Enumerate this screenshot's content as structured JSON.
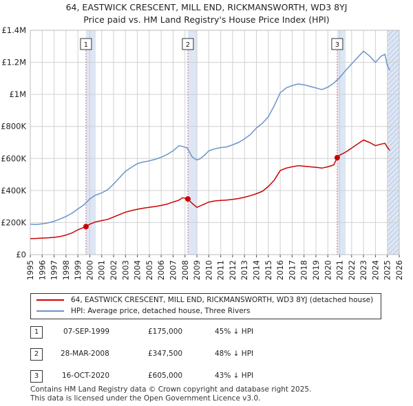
{
  "colors": {
    "price": "#cc0000",
    "hpi": "#6a93c8",
    "shade": "#dde6f4",
    "grid": "#d0d0d0",
    "marker_line": "#e06666"
  },
  "chart_data": {
    "type": "line",
    "title": "64, EASTWICK CRESCENT, MILL END, RICKMANSWORTH, WD3 8YJ",
    "subtitle": "Price paid vs. HM Land Registry's House Price Index (HPI)",
    "xlabel": "",
    "ylabel": "",
    "xlim": [
      1995,
      2026
    ],
    "ylim": [
      0,
      1400000
    ],
    "x_ticks": [
      "1995",
      "1996",
      "1997",
      "1998",
      "1999",
      "2000",
      "2001",
      "2002",
      "2003",
      "2004",
      "2005",
      "2006",
      "2007",
      "2008",
      "2009",
      "2010",
      "2011",
      "2012",
      "2013",
      "2014",
      "2015",
      "2016",
      "2017",
      "2018",
      "2019",
      "2020",
      "2021",
      "2022",
      "2023",
      "2024",
      "2025",
      "2026"
    ],
    "y_ticks": [
      {
        "value": 0,
        "label": "£0"
      },
      {
        "value": 200000,
        "label": "£200K"
      },
      {
        "value": 400000,
        "label": "£400K"
      },
      {
        "value": 600000,
        "label": "£600K"
      },
      {
        "value": 800000,
        "label": "£800K"
      },
      {
        "value": 1000000,
        "label": "£1M"
      },
      {
        "value": 1200000,
        "label": "£1.2M"
      },
      {
        "value": 1400000,
        "label": "£1.4M"
      }
    ],
    "grid": true,
    "shaded_ranges": [
      [
        1999.68,
        2000.5
      ],
      [
        2008.24,
        2009.0
      ],
      [
        2020.79,
        2021.5
      ],
      [
        2025.0,
        2026.0
      ]
    ],
    "hatched_range": [
      2025.0,
      2026.0
    ],
    "series": [
      {
        "name": "64, EASTWICK CRESCENT, MILL END, RICKMANSWORTH, WD3 8YJ (detached house)",
        "color": "#cc0000",
        "x": [
          1995.0,
          1995.5,
          1996.0,
          1996.5,
          1997.0,
          1997.5,
          1998.0,
          1998.5,
          1999.0,
          1999.68,
          2000.0,
          2000.5,
          2001.0,
          2001.5,
          2002.0,
          2002.5,
          2003.0,
          2003.5,
          2004.0,
          2004.5,
          2005.0,
          2005.5,
          2006.0,
          2006.5,
          2007.0,
          2007.5,
          2007.8,
          2008.24,
          2008.6,
          2009.0,
          2009.3,
          2009.7,
          2010.0,
          2010.5,
          2011.0,
          2011.5,
          2012.0,
          2012.5,
          2013.0,
          2013.5,
          2014.0,
          2014.5,
          2015.0,
          2015.5,
          2016.0,
          2016.5,
          2017.0,
          2017.5,
          2018.0,
          2018.5,
          2019.0,
          2019.5,
          2020.0,
          2020.5,
          2020.79,
          2021.0,
          2021.5,
          2022.0,
          2022.5,
          2023.0,
          2023.5,
          2024.0,
          2024.5,
          2024.8,
          2025.0,
          2025.2
        ],
        "y": [
          100000,
          101000,
          103000,
          105000,
          108000,
          113000,
          122000,
          135000,
          155000,
          175000,
          190000,
          205000,
          212000,
          220000,
          235000,
          250000,
          265000,
          275000,
          283000,
          290000,
          295000,
          300000,
          307000,
          315000,
          328000,
          340000,
          355000,
          347500,
          320000,
          295000,
          305000,
          318000,
          328000,
          335000,
          338000,
          340000,
          345000,
          350000,
          358000,
          368000,
          380000,
          395000,
          425000,
          465000,
          525000,
          540000,
          548000,
          555000,
          552000,
          548000,
          545000,
          540000,
          548000,
          560000,
          605000,
          620000,
          640000,
          665000,
          690000,
          715000,
          700000,
          680000,
          690000,
          695000,
          670000,
          650000
        ]
      },
      {
        "name": "HPI: Average price, detached house, Three Rivers",
        "color": "#6a93c8",
        "x": [
          1995.0,
          1995.5,
          1996.0,
          1996.5,
          1997.0,
          1997.5,
          1998.0,
          1998.5,
          1999.0,
          1999.5,
          2000.0,
          2000.5,
          2001.0,
          2001.5,
          2002.0,
          2002.5,
          2003.0,
          2003.5,
          2004.0,
          2004.5,
          2005.0,
          2005.5,
          2006.0,
          2006.5,
          2007.0,
          2007.5,
          2007.8,
          2008.2,
          2008.6,
          2009.0,
          2009.3,
          2009.7,
          2010.0,
          2010.5,
          2011.0,
          2011.5,
          2012.0,
          2012.5,
          2013.0,
          2013.5,
          2014.0,
          2014.5,
          2015.0,
          2015.5,
          2016.0,
          2016.5,
          2017.0,
          2017.5,
          2018.0,
          2018.5,
          2019.0,
          2019.5,
          2020.0,
          2020.5,
          2021.0,
          2021.5,
          2022.0,
          2022.5,
          2023.0,
          2023.5,
          2024.0,
          2024.5,
          2024.8,
          2025.0,
          2025.2
        ],
        "y": [
          190000,
          188000,
          192000,
          198000,
          208000,
          222000,
          238000,
          258000,
          285000,
          310000,
          348000,
          372000,
          385000,
          405000,
          440000,
          480000,
          520000,
          545000,
          568000,
          578000,
          585000,
          595000,
          608000,
          625000,
          648000,
          680000,
          675000,
          665000,
          610000,
          590000,
          600000,
          625000,
          648000,
          660000,
          668000,
          672000,
          685000,
          700000,
          722000,
          750000,
          790000,
          820000,
          860000,
          930000,
          1010000,
          1040000,
          1055000,
          1065000,
          1060000,
          1050000,
          1040000,
          1030000,
          1045000,
          1070000,
          1105000,
          1150000,
          1190000,
          1230000,
          1270000,
          1240000,
          1200000,
          1240000,
          1250000,
          1180000,
          1150000
        ]
      }
    ],
    "sales": [
      {
        "label": "1",
        "x": 1999.68,
        "y": 175000
      },
      {
        "label": "2",
        "x": 2008.24,
        "y": 347500
      },
      {
        "label": "3",
        "x": 2020.79,
        "y": 605000
      }
    ]
  },
  "legend": {
    "price_label": "64, EASTWICK CRESCENT, MILL END, RICKMANSWORTH, WD3 8YJ (detached house)",
    "hpi_label": "HPI: Average price, detached house, Three Rivers"
  },
  "transactions": [
    {
      "num": "1",
      "date": "07-SEP-1999",
      "price": "£175,000",
      "hpi": "45% ↓ HPI"
    },
    {
      "num": "2",
      "date": "28-MAR-2008",
      "price": "£347,500",
      "hpi": "48% ↓ HPI"
    },
    {
      "num": "3",
      "date": "16-OCT-2020",
      "price": "£605,000",
      "hpi": "43% ↓ HPI"
    }
  ],
  "footer": {
    "line1": "Contains HM Land Registry data © Crown copyright and database right 2025.",
    "line2": "This data is licensed under the Open Government Licence v3.0."
  }
}
